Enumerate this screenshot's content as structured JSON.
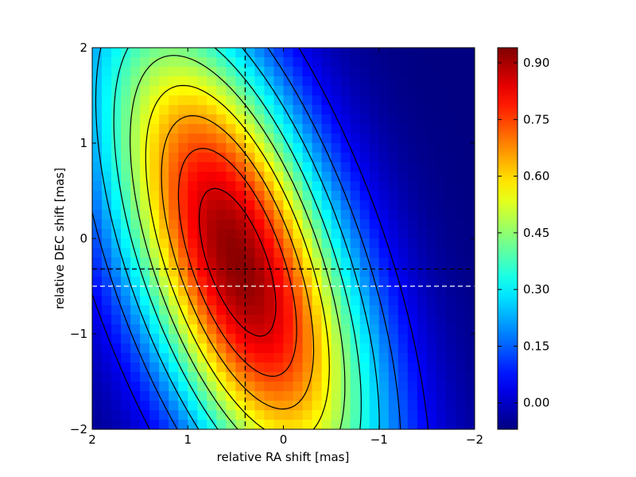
{
  "chart_data": {
    "type": "heatmap",
    "title": "",
    "xlabel": "relative RA shift [mas]",
    "ylabel": "relative DEC shift [mas]",
    "xlim": [
      2,
      -2
    ],
    "ylim": [
      -2,
      2
    ],
    "x_reversed": true,
    "x_ticks": [
      2,
      1,
      0,
      -1,
      -2
    ],
    "x_tick_labels": [
      "2",
      "1",
      "0",
      "−1",
      "−2"
    ],
    "y_ticks": [
      -2,
      -1,
      0,
      1,
      2
    ],
    "y_tick_labels": [
      "−2",
      "−1",
      "0",
      "1",
      "2"
    ],
    "grid": false,
    "colormap": "jet",
    "grid_resolution": 40,
    "field": {
      "peak": 0.93,
      "peak_ra": 0.48,
      "peak_dec": -0.25,
      "sigma_major": 2.0,
      "sigma_minor": 0.75,
      "major_axis_tilt_deg": 70,
      "floor": -0.07
    },
    "contour_levels": [
      0.05,
      0.15,
      0.25,
      0.35,
      0.45,
      0.55,
      0.65,
      0.75,
      0.85
    ],
    "reference_lines": [
      {
        "orientation": "vertical",
        "value": 0.4,
        "color": "#000000",
        "style": "dashed"
      },
      {
        "orientation": "horizontal",
        "value": -0.32,
        "color": "#000000",
        "style": "dashed"
      },
      {
        "orientation": "horizontal",
        "value": -0.5,
        "color": "#ffffff",
        "style": "dashed"
      }
    ],
    "colorbar": {
      "min": -0.07,
      "max": 0.94,
      "ticks": [
        0.0,
        0.15,
        0.3,
        0.45,
        0.6,
        0.75,
        0.9
      ],
      "tick_labels": [
        "0.00",
        "0.15",
        "0.30",
        "0.45",
        "0.60",
        "0.75",
        "0.90"
      ]
    }
  }
}
